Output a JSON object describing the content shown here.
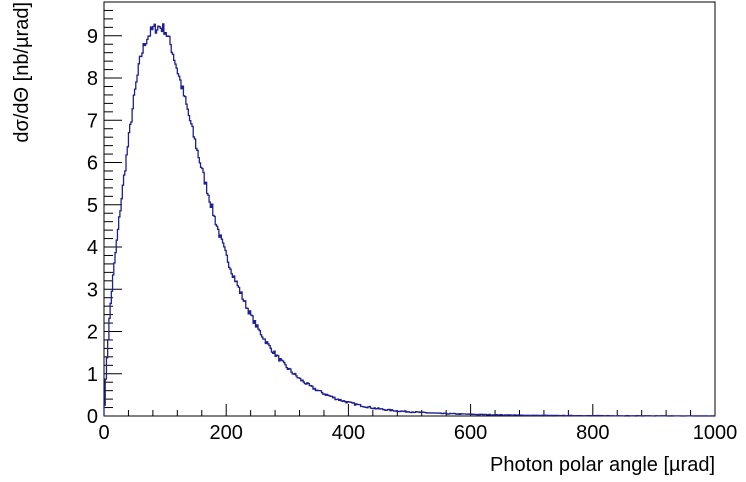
{
  "chart_data": {
    "type": "line",
    "style": "histogram-step",
    "xlabel": "Photon polar angle [µrad]",
    "ylabel": "dσ/dΘ [nb/µrad]",
    "xlim": [
      0,
      1000
    ],
    "ylim": [
      0,
      9.8
    ],
    "x_ticks": [
      0,
      200,
      400,
      600,
      800,
      1000
    ],
    "y_ticks": [
      0,
      1,
      2,
      3,
      4,
      5,
      6,
      7,
      8,
      9
    ],
    "x_tick_labels": [
      "0",
      "200",
      "400",
      "600",
      "800",
      "1000"
    ],
    "y_tick_labels": [
      "0",
      "1",
      "2",
      "3",
      "4",
      "5",
      "6",
      "7",
      "8",
      "9"
    ],
    "grid": false,
    "series": [
      {
        "color": "#1f1f8f",
        "x": [
          0,
          5,
          10,
          15,
          20,
          30,
          40,
          50,
          60,
          70,
          80,
          90,
          100,
          110,
          120,
          130,
          140,
          150,
          160,
          170,
          180,
          190,
          200,
          210,
          220,
          230,
          240,
          250,
          260,
          270,
          280,
          290,
          300,
          320,
          340,
          360,
          380,
          400,
          420,
          440,
          460,
          480,
          500,
          550,
          600,
          650,
          700,
          750,
          800,
          850,
          900,
          950,
          1000
        ],
        "values": [
          0.0,
          1.4,
          2.5,
          3.3,
          4.0,
          5.3,
          6.5,
          7.6,
          8.5,
          8.95,
          9.15,
          9.22,
          9.15,
          8.75,
          8.2,
          7.65,
          7.05,
          6.45,
          5.85,
          5.3,
          4.75,
          4.25,
          3.8,
          3.4,
          3.05,
          2.7,
          2.4,
          2.12,
          1.88,
          1.66,
          1.47,
          1.3,
          1.14,
          0.88,
          0.68,
          0.53,
          0.41,
          0.32,
          0.25,
          0.19,
          0.15,
          0.12,
          0.1,
          0.06,
          0.04,
          0.025,
          0.015,
          0.01,
          0.007,
          0.005,
          0.003,
          0.002,
          0.001
        ]
      }
    ]
  }
}
